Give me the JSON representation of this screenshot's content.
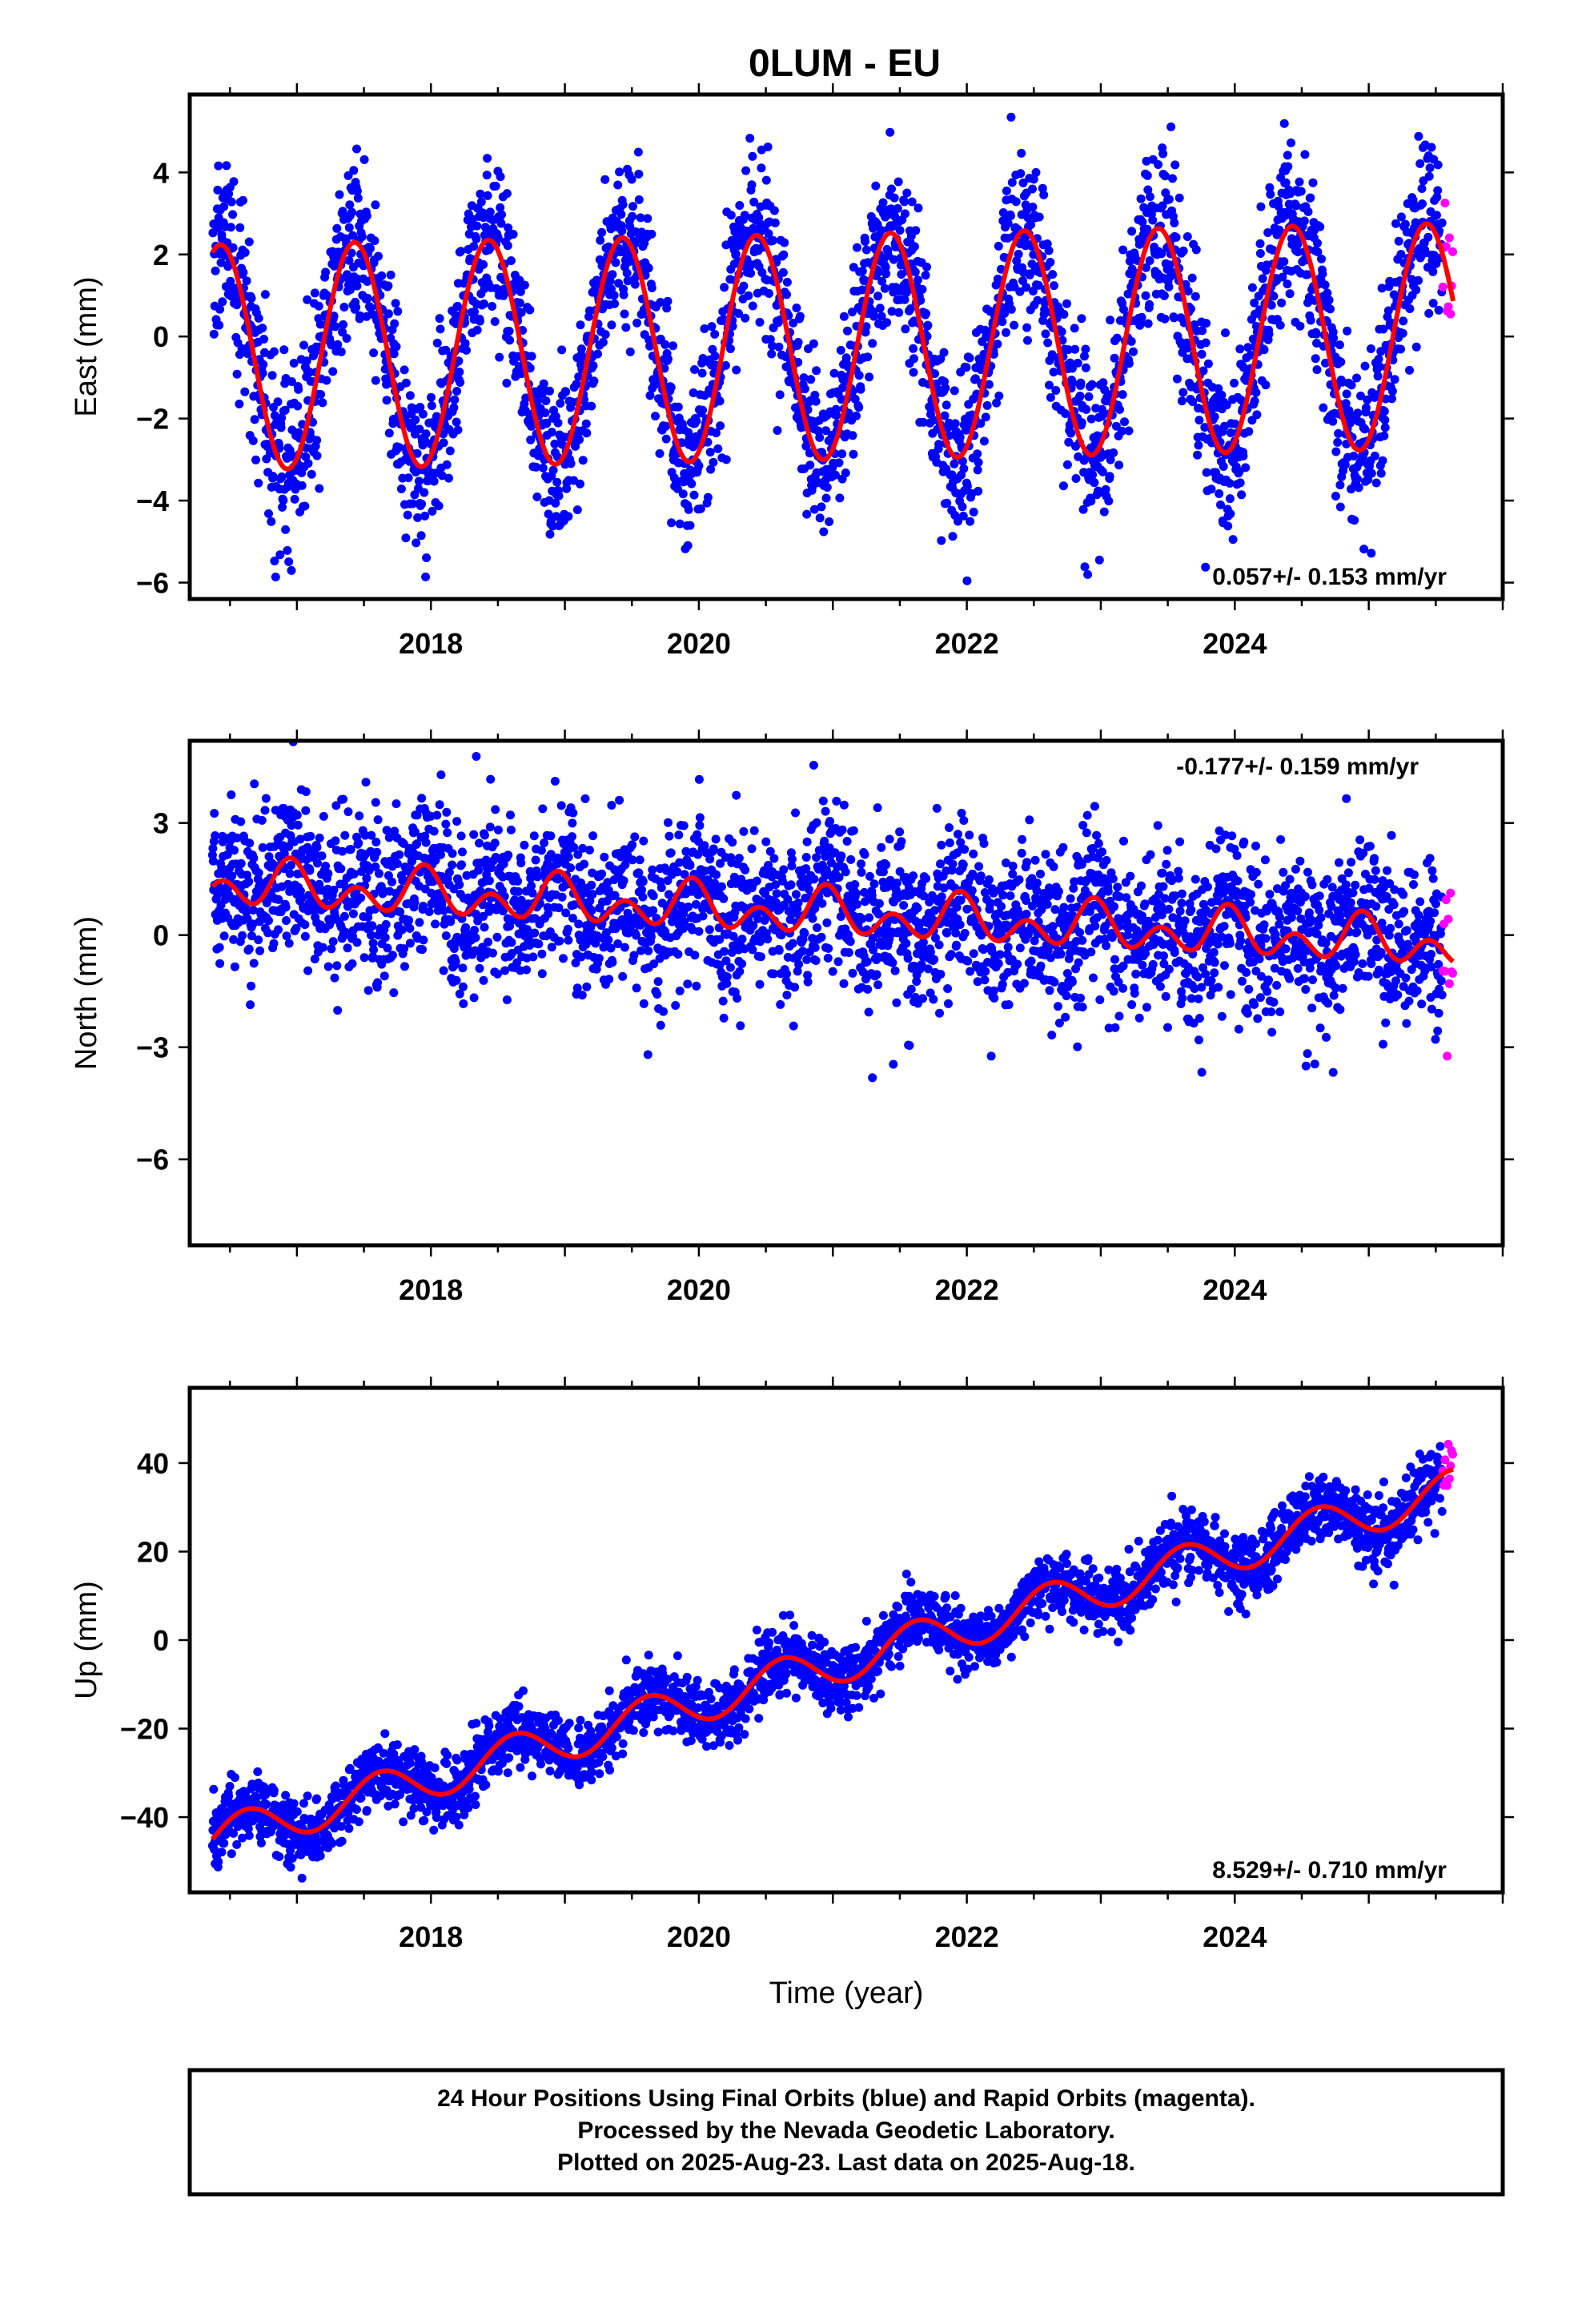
{
  "page": {
    "title": "0LUM - EU",
    "footer": [
      "24 Hour Positions Using Final Orbits (blue) and Rapid Orbits (magenta).",
      "Processed by the Nevada Geodetic Laboratory.",
      "Plotted on 2025-Aug-23. Last data on 2025-Aug-18."
    ],
    "colors": {
      "final_orbits": "#0000ff",
      "rapid_orbits": "#ff00ff",
      "model_fit": "#ff0000"
    }
  },
  "chart_data": [
    {
      "type": "scatter",
      "name": "east",
      "ylabel": "East (mm)",
      "xlabel": "",
      "xlim": [
        2016.2,
        2026.0
      ],
      "ylim": [
        -6.4,
        5.9
      ],
      "xticks": [
        2018,
        2020,
        2022,
        2024
      ],
      "yticks": [
        -6,
        -4,
        -2,
        0,
        2,
        4
      ],
      "data_start": 2016.37,
      "final_end": 2025.55,
      "last_data": 2025.63,
      "rate_text": "0.057+/- 0.153 mm/yr",
      "rate_position": "bottom-right",
      "model": {
        "offset": -0.25,
        "rate": 0.057,
        "annual_amplitude": 2.75,
        "annual_peak": 0.43,
        "semiannual_amplitude": 0.0,
        "semiannual_peak": 0.0
      },
      "scatter_sigma": 1.05,
      "series": [
        {
          "name": "Final Orbits",
          "color": "#0000ff"
        },
        {
          "name": "Rapid Orbits",
          "color": "#ff00ff"
        }
      ],
      "grid": false
    },
    {
      "type": "scatter",
      "name": "north",
      "ylabel": "North (mm)",
      "xlabel": "",
      "xlim": [
        2016.2,
        2026.0
      ],
      "ylim": [
        -8.3,
        5.2
      ],
      "xticks": [
        2018,
        2020,
        2022,
        2024
      ],
      "yticks": [
        -6,
        -3,
        0,
        3
      ],
      "data_start": 2016.37,
      "final_end": 2025.55,
      "last_data": 2025.63,
      "rate_text": "-0.177+/- 0.159 mm/yr",
      "rate_position": "top-right",
      "model": {
        "offset": 0.55,
        "rate": -0.177,
        "annual_amplitude": 0.35,
        "annual_peak": 0.95,
        "semiannual_amplitude": 0.45,
        "semiannual_peak": 0.45
      },
      "scatter_sigma": 1.1,
      "series": [
        {
          "name": "Final Orbits",
          "color": "#0000ff"
        },
        {
          "name": "Rapid Orbits",
          "color": "#ff00ff"
        }
      ],
      "grid": false
    },
    {
      "type": "scatter",
      "name": "up",
      "ylabel": "Up (mm)",
      "xlabel": "Time (year)",
      "xlim": [
        2016.2,
        2026.0
      ],
      "ylim": [
        -57.0,
        57.0
      ],
      "xticks": [
        2018,
        2020,
        2022,
        2024
      ],
      "yticks": [
        -40,
        -20,
        0,
        20,
        40
      ],
      "data_start": 2016.37,
      "final_end": 2025.55,
      "last_data": 2025.63,
      "rate_text": "8.529+/- 0.710 mm/yr",
      "rate_position": "bottom-right",
      "model": {
        "offset": -45.0,
        "rate": 8.529,
        "annual_amplitude": 4.6,
        "annual_peak": 0.62,
        "semiannual_amplitude": 0.0,
        "semiannual_peak": 0.0,
        "anchor_year": 2016.37
      },
      "scatter_sigma": 3.6,
      "series": [
        {
          "name": "Final Orbits",
          "color": "#0000ff"
        },
        {
          "name": "Rapid Orbits",
          "color": "#ff00ff"
        }
      ],
      "grid": false
    }
  ]
}
